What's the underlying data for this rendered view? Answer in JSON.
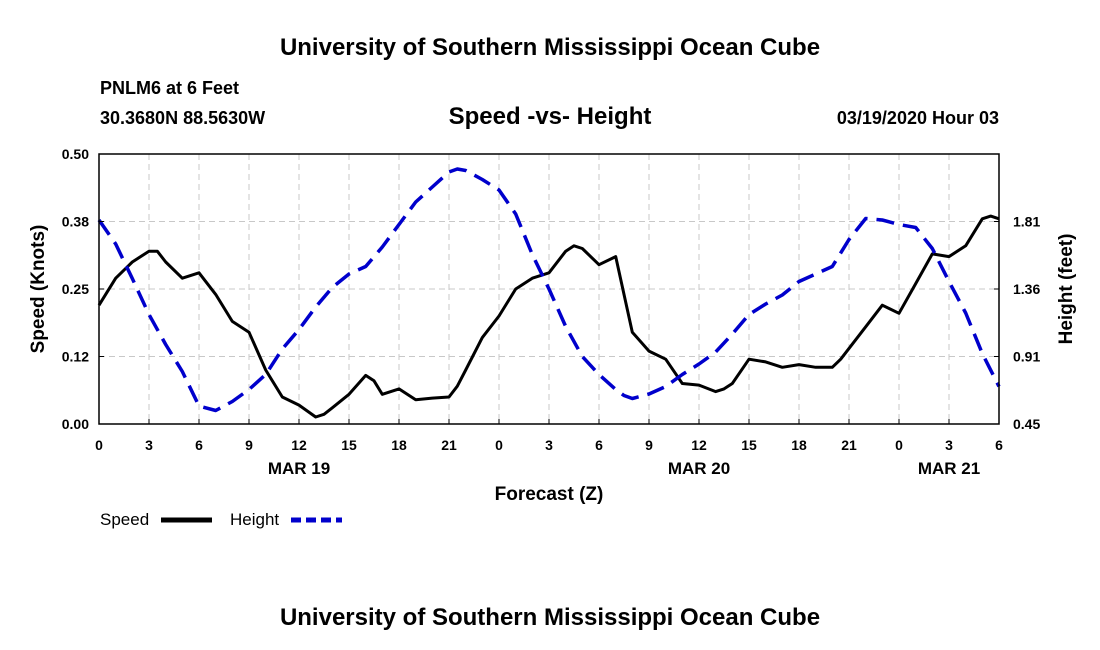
{
  "header": {
    "title": "University of Southern Mississippi Ocean Cube",
    "station": "PNLM6 at 6 Feet",
    "coords": "30.3680N 88.5630W",
    "chart_title": "Speed -vs- Height",
    "date": "03/19/2020 Hour 03"
  },
  "footer": {
    "title": "University of Southern Mississippi Ocean Cube"
  },
  "legend": {
    "speed": "Speed",
    "height": "Height"
  },
  "colors": {
    "speed": "#000000",
    "height": "#0000cc",
    "grid": "#c8c8c8"
  },
  "chart_data": {
    "type": "line",
    "title": "Speed -vs- Height",
    "xlabel": "Forecast (Z)",
    "ylabel": "Speed (Knots)",
    "y2label": "Height (feet)",
    "xlim": [
      0,
      54
    ],
    "ylim": [
      0,
      0.5
    ],
    "y2lim": [
      0.45,
      2.25
    ],
    "x_ticks": [
      "0",
      "3",
      "6",
      "9",
      "12",
      "15",
      "18",
      "21",
      "0",
      "3",
      "6",
      "9",
      "12",
      "15",
      "18",
      "21",
      "0",
      "3",
      "6"
    ],
    "y_ticks": [
      "0.00",
      "0.12",
      "0.25",
      "0.38",
      "0.50"
    ],
    "y2_ticks": [
      "0.45",
      "0.91",
      "1.36",
      "1.81"
    ],
    "date_labels": [
      {
        "x": 12,
        "label": "MAR 19"
      },
      {
        "x": 36,
        "label": "MAR 20"
      },
      {
        "x": 51,
        "label": "MAR 21"
      }
    ],
    "series": [
      {
        "name": "Speed",
        "axis": "left",
        "style": "solid",
        "points": [
          [
            0,
            0.22
          ],
          [
            1,
            0.27
          ],
          [
            2,
            0.3
          ],
          [
            3,
            0.32
          ],
          [
            3.5,
            0.32
          ],
          [
            4,
            0.3
          ],
          [
            5,
            0.27
          ],
          [
            6,
            0.28
          ],
          [
            7,
            0.24
          ],
          [
            8,
            0.19
          ],
          [
            9,
            0.17
          ],
          [
            10,
            0.1
          ],
          [
            11,
            0.05
          ],
          [
            12,
            0.035
          ],
          [
            13,
            0.013
          ],
          [
            13.5,
            0.018
          ],
          [
            14,
            0.03
          ],
          [
            15,
            0.055
          ],
          [
            16,
            0.09
          ],
          [
            16.5,
            0.08
          ],
          [
            17,
            0.055
          ],
          [
            18,
            0.065
          ],
          [
            19,
            0.045
          ],
          [
            20,
            0.048
          ],
          [
            21,
            0.05
          ],
          [
            21.5,
            0.07
          ],
          [
            22,
            0.1
          ],
          [
            23,
            0.16
          ],
          [
            24,
            0.2
          ],
          [
            25,
            0.25
          ],
          [
            26,
            0.27
          ],
          [
            27,
            0.28
          ],
          [
            28,
            0.32
          ],
          [
            28.5,
            0.33
          ],
          [
            29,
            0.325
          ],
          [
            30,
            0.295
          ],
          [
            31,
            0.31
          ],
          [
            32,
            0.17
          ],
          [
            33,
            0.135
          ],
          [
            34,
            0.12
          ],
          [
            35,
            0.075
          ],
          [
            36,
            0.072
          ],
          [
            37,
            0.06
          ],
          [
            37.5,
            0.065
          ],
          [
            38,
            0.075
          ],
          [
            39,
            0.12
          ],
          [
            40,
            0.115
          ],
          [
            41,
            0.105
          ],
          [
            42,
            0.11
          ],
          [
            43,
            0.105
          ],
          [
            44,
            0.105
          ],
          [
            44.5,
            0.12
          ],
          [
            45,
            0.14
          ],
          [
            46,
            0.18
          ],
          [
            47,
            0.22
          ],
          [
            48,
            0.205
          ],
          [
            49,
            0.26
          ],
          [
            50,
            0.315
          ],
          [
            51,
            0.31
          ],
          [
            52,
            0.33
          ],
          [
            53,
            0.38
          ],
          [
            53.5,
            0.385
          ],
          [
            54,
            0.38
          ]
        ]
      },
      {
        "name": "Height",
        "axis": "right",
        "style": "dashed",
        "points": [
          [
            0,
            1.81
          ],
          [
            1,
            1.65
          ],
          [
            2,
            1.42
          ],
          [
            3,
            1.18
          ],
          [
            4,
            0.98
          ],
          [
            5,
            0.8
          ],
          [
            6,
            0.57
          ],
          [
            7,
            0.54
          ],
          [
            8,
            0.6
          ],
          [
            9,
            0.68
          ],
          [
            10,
            0.78
          ],
          [
            11,
            0.95
          ],
          [
            12,
            1.08
          ],
          [
            13,
            1.23
          ],
          [
            14,
            1.36
          ],
          [
            15,
            1.45
          ],
          [
            16,
            1.5
          ],
          [
            17,
            1.63
          ],
          [
            18,
            1.78
          ],
          [
            19,
            1.93
          ],
          [
            20,
            2.03
          ],
          [
            21,
            2.13
          ],
          [
            21.5,
            2.15
          ],
          [
            22,
            2.14
          ],
          [
            23,
            2.08
          ],
          [
            24,
            2.01
          ],
          [
            25,
            1.85
          ],
          [
            26,
            1.58
          ],
          [
            27,
            1.35
          ],
          [
            28,
            1.1
          ],
          [
            29,
            0.9
          ],
          [
            30,
            0.78
          ],
          [
            31,
            0.68
          ],
          [
            31.5,
            0.64
          ],
          [
            32,
            0.62
          ],
          [
            33,
            0.65
          ],
          [
            34,
            0.7
          ],
          [
            35,
            0.78
          ],
          [
            36,
            0.85
          ],
          [
            37,
            0.93
          ],
          [
            38,
            1.05
          ],
          [
            39,
            1.18
          ],
          [
            40,
            1.25
          ],
          [
            41,
            1.31
          ],
          [
            42,
            1.4
          ],
          [
            43,
            1.45
          ],
          [
            44,
            1.5
          ],
          [
            45,
            1.68
          ],
          [
            46,
            1.82
          ],
          [
            47,
            1.81
          ],
          [
            48,
            1.78
          ],
          [
            49,
            1.76
          ],
          [
            50,
            1.62
          ],
          [
            51,
            1.4
          ],
          [
            52,
            1.19
          ],
          [
            53,
            0.92
          ],
          [
            54,
            0.7
          ]
        ]
      }
    ]
  }
}
